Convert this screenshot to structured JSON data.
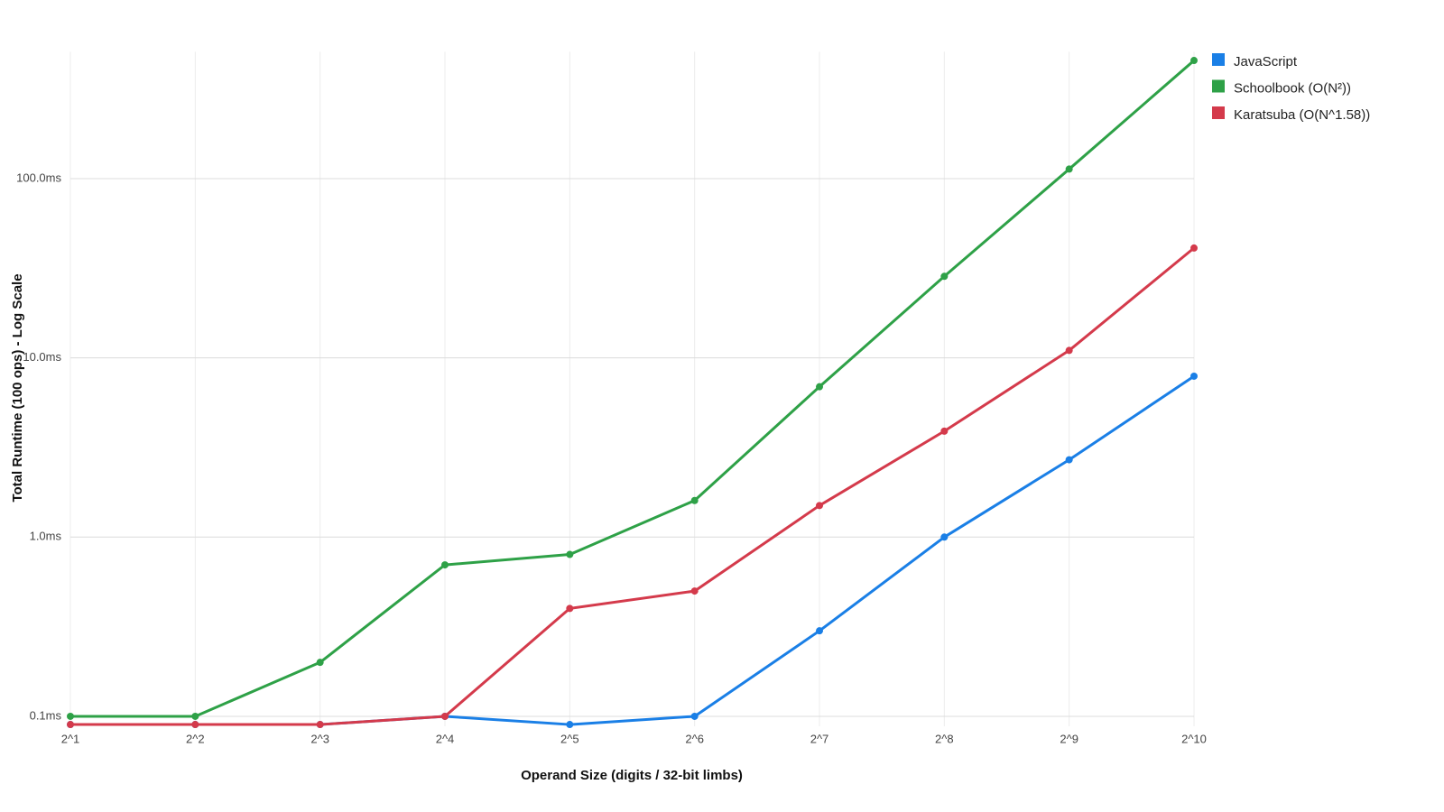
{
  "chart_data": {
    "type": "line",
    "y_label": "Total Runtime (100 ops) - Log Scale",
    "x_label": "Operand Size (digits / 32-bit limbs)",
    "categories": [
      "2^1",
      "2^2",
      "2^3",
      "2^4",
      "2^5",
      "2^6",
      "2^7",
      "2^8",
      "2^9",
      "2^10"
    ],
    "yscale": "log",
    "ylim": [
      0.088,
      510
    ],
    "yticks": [
      {
        "value": 0.1,
        "label": "0.1ms"
      },
      {
        "value": 1,
        "label": "1.0ms"
      },
      {
        "value": 10,
        "label": "10.0ms"
      },
      {
        "value": 100,
        "label": "100.0ms"
      }
    ],
    "grid": true,
    "legend": "top-right",
    "series": [
      {
        "name": "JavaScript",
        "color": "#1a7fe6",
        "values": [
          0.09,
          0.09,
          0.09,
          0.1,
          0.09,
          0.1,
          0.3,
          1.0,
          2.7,
          7.9
        ]
      },
      {
        "name": "Schoolbook (O(N²))",
        "color": "#2ea147",
        "values": [
          0.1,
          0.1,
          0.2,
          0.7,
          0.8,
          1.6,
          6.9,
          28.5,
          113,
          456
        ]
      },
      {
        "name": "Karatsuba (O(N^1.58))",
        "color": "#d43a4b",
        "values": [
          0.09,
          0.09,
          0.09,
          0.1,
          0.4,
          0.5,
          1.5,
          3.9,
          11,
          41
        ]
      }
    ]
  }
}
